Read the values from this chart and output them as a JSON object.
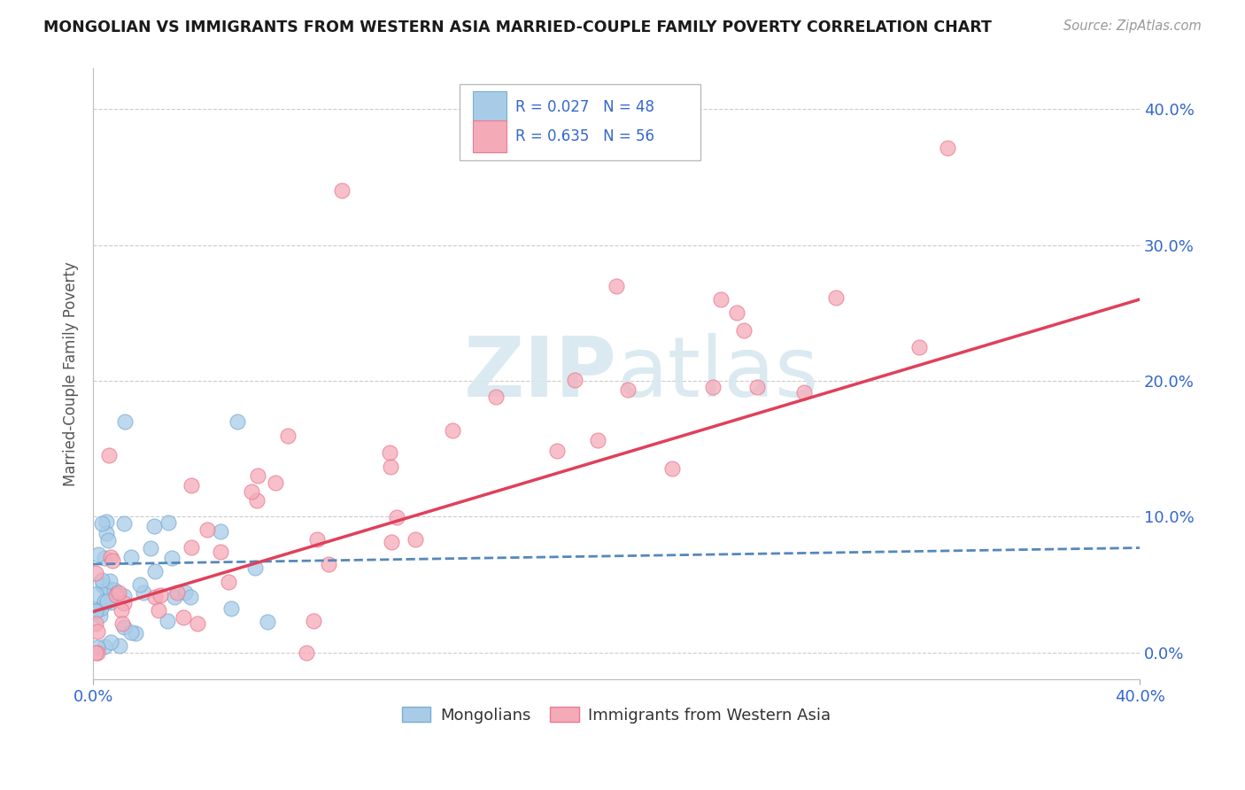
{
  "title": "MONGOLIAN VS IMMIGRANTS FROM WESTERN ASIA MARRIED-COUPLE FAMILY POVERTY CORRELATION CHART",
  "source": "Source: ZipAtlas.com",
  "ylabel": "Married-Couple Family Poverty",
  "yticks_labels": [
    "0.0%",
    "10.0%",
    "20.0%",
    "30.0%",
    "40.0%"
  ],
  "ytick_vals": [
    0.0,
    0.1,
    0.2,
    0.3,
    0.4
  ],
  "xlim": [
    0.0,
    0.4
  ],
  "ylim": [
    -0.02,
    0.43
  ],
  "mongolian_color": "#a8cce8",
  "mongolian_edge": "#7aadd4",
  "western_asia_color": "#f5aab8",
  "western_asia_edge": "#e87a90",
  "mongolian_line_color": "#5588bb",
  "western_asia_line_color": "#e0405a",
  "legend_text_color": "#3366cc",
  "watermark_color": "#d8e8f0",
  "mon_label": "Mongolians",
  "wa_label": "Immigrants from Western Asia",
  "mon_R_text": "R = 0.027",
  "mon_N_text": "N = 48",
  "wa_R_text": "R = 0.635",
  "wa_N_text": "N = 56"
}
